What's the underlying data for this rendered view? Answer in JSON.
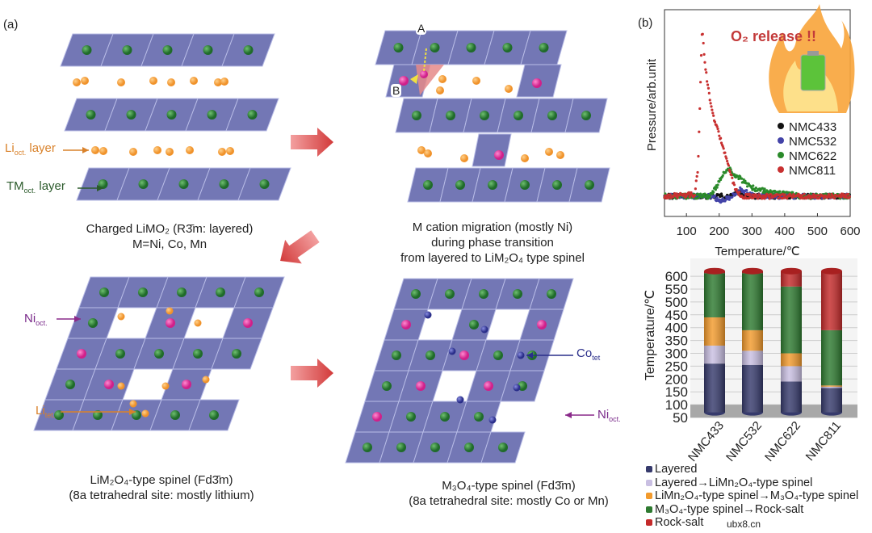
{
  "panel_a": {
    "tag": "(a)",
    "layered": {
      "caption_line1": "Charged LiMO₂ (R3̄m: layered)",
      "caption_line2": "M=Ni, Co, Mn",
      "li_label": {
        "main": "Li",
        "sub": "oct.",
        "rest": " layer"
      },
      "tm_label": {
        "main": "TM",
        "sub": "oct.",
        "rest": " layer"
      }
    },
    "migration": {
      "caption_line1": "M cation migration (mostly Ni)",
      "caption_line2": "during phase transition",
      "caption_line3": "from layered to LiM₂O₄ type spinel",
      "site_a": "A",
      "site_b": "B"
    },
    "spinel_limo": {
      "caption_line1": "LiM₂O₄-type spinel (Fd3̄m)",
      "caption_line2": "(8a tetrahedral site: mostly lithium)",
      "ni_label": {
        "main": "Ni",
        "sub": "oct."
      },
      "li_label": {
        "main": "Li",
        "sub": "tet."
      }
    },
    "spinel_m3o4": {
      "caption_line1": "M₃O₄-type spinel (Fd3̄m)",
      "caption_line2": "(8a tetrahedral site: mostly Co or Mn)",
      "co_label": {
        "main": "Co",
        "sub": "tet"
      },
      "ni_label": {
        "main": "Ni",
        "sub": "oct."
      }
    },
    "colors": {
      "octahedra": "#5a5fa8",
      "tm_atom": "#1f6b2a",
      "li_atom": "#f0922a",
      "ni_atom": "#d0208a",
      "co_atom": "#2a2e8a",
      "arrow": "#d23a3a"
    }
  },
  "panel_b": {
    "tag": "(b)",
    "annotation": "O₂ release !!",
    "annotation_icon": "burning-battery-icon"
  },
  "chart_data": [
    {
      "type": "scatter",
      "title": "",
      "xlabel": "Temperature/℃",
      "ylabel": "Pressure/arb.unit",
      "xlim": [
        33,
        600
      ],
      "xticks": [
        100,
        200,
        300,
        400,
        500,
        600
      ],
      "y_ticks_shown": false,
      "legend_position": "right",
      "grid": false,
      "series": [
        {
          "name": "NMC433",
          "color": "#111111",
          "points": [
            [
              33,
              0
            ],
            [
              220,
              0
            ],
            [
              260,
              0.02
            ],
            [
              290,
              0
            ],
            [
              600,
              0
            ]
          ]
        },
        {
          "name": "NMC532",
          "color": "#4343a8",
          "points": [
            [
              33,
              0
            ],
            [
              180,
              0
            ],
            [
              200,
              -0.03
            ],
            [
              235,
              -0.01
            ],
            [
              265,
              0.04
            ],
            [
              290,
              0.02
            ],
            [
              320,
              0
            ],
            [
              600,
              0
            ]
          ]
        },
        {
          "name": "NMC622",
          "color": "#2a8a2a",
          "points": [
            [
              33,
              0
            ],
            [
              170,
              0
            ],
            [
              190,
              0.05
            ],
            [
              210,
              0.12
            ],
            [
              230,
              0.16
            ],
            [
              260,
              0.11
            ],
            [
              300,
              0.05
            ],
            [
              350,
              0.025
            ],
            [
              420,
              0.01
            ],
            [
              450,
              0
            ],
            [
              600,
              0
            ]
          ]
        },
        {
          "name": "NMC811",
          "color": "#c83030",
          "points": [
            [
              33,
              0
            ],
            [
              125,
              0.01
            ],
            [
              135,
              0.15
            ],
            [
              142,
              0.6
            ],
            [
              148,
              1.0
            ],
            [
              155,
              0.8
            ],
            [
              165,
              0.65
            ],
            [
              180,
              0.48
            ],
            [
              200,
              0.36
            ],
            [
              220,
              0.24
            ],
            [
              240,
              0.1
            ],
            [
              255,
              0.02
            ],
            [
              270,
              0
            ],
            [
              600,
              0
            ]
          ]
        }
      ]
    },
    {
      "type": "bar",
      "stacked": true,
      "title": "",
      "xlabel": "",
      "ylabel": "Temperature/℃",
      "ylim": [
        50,
        620
      ],
      "yticks": [
        50,
        100,
        150,
        200,
        250,
        300,
        350,
        400,
        450,
        500,
        550,
        600
      ],
      "bar_base": 70,
      "categories": [
        "NMC433",
        "NMC532",
        "NMC622",
        "NMC811"
      ],
      "legend_position": "bottom",
      "series": [
        {
          "name": "Layered",
          "color": "#363a6c",
          "tops": [
            260,
            255,
            190,
            165
          ]
        },
        {
          "name": "Layered→LiMn₂O₄-type spinel",
          "color": "#c9bfe2",
          "tops": [
            330,
            310,
            250,
            170
          ]
        },
        {
          "name": "LiMn₂O₄-type spinel→M₃O₄-type spinel",
          "color": "#f29a2c",
          "tops": [
            440,
            390,
            300,
            175
          ]
        },
        {
          "name": "M₃O₄-type spinel→Rock-salt",
          "color": "#2e7a30",
          "tops": [
            612,
            612,
            560,
            390
          ]
        },
        {
          "name": "Rock-salt",
          "color": "#c42a2a",
          "tops": [
            620,
            620,
            620,
            620
          ]
        }
      ]
    }
  ],
  "watermark": "ubx8.cn"
}
